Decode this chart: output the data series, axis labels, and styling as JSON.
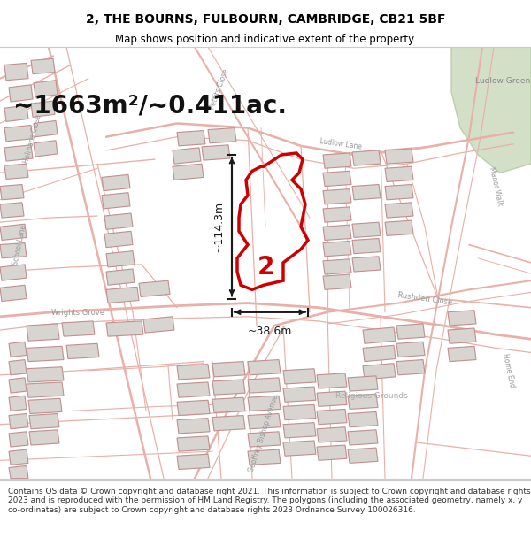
{
  "title": "2, THE BOURNS, FULBOURN, CAMBRIDGE, CB21 5BF",
  "subtitle": "Map shows position and indicative extent of the property.",
  "area_text": "~1663m²/~0.411ac.",
  "dim_height": "~114.3m",
  "dim_width": "~38.6m",
  "property_number": "2",
  "footer": "Contains OS data © Crown copyright and database right 2021. This information is subject to Crown copyright and database rights 2023 and is reproduced with the permission of HM Land Registry. The polygons (including the associated geometry, namely x, y co-ordinates) are subject to Crown copyright and database rights 2023 Ordnance Survey 100026316.",
  "map_bg": "#f9f8f6",
  "road_color": "#e8b0a8",
  "road_outline_color": "#d49090",
  "building_fill": "#d8d4cf",
  "building_stroke": "#c09090",
  "highlight_color": "#cc0000",
  "dim_color": "#1a1a1a",
  "title_color": "#000000",
  "footer_color": "#333333",
  "label_color": "#999999",
  "green_area_color": "#c8d8b8",
  "area_text_color": "#111111",
  "title_fontsize": 10,
  "subtitle_fontsize": 8.5,
  "area_fontsize": 20,
  "dim_fontsize": 9,
  "label_fontsize": 6,
  "footer_fontsize": 6.5
}
